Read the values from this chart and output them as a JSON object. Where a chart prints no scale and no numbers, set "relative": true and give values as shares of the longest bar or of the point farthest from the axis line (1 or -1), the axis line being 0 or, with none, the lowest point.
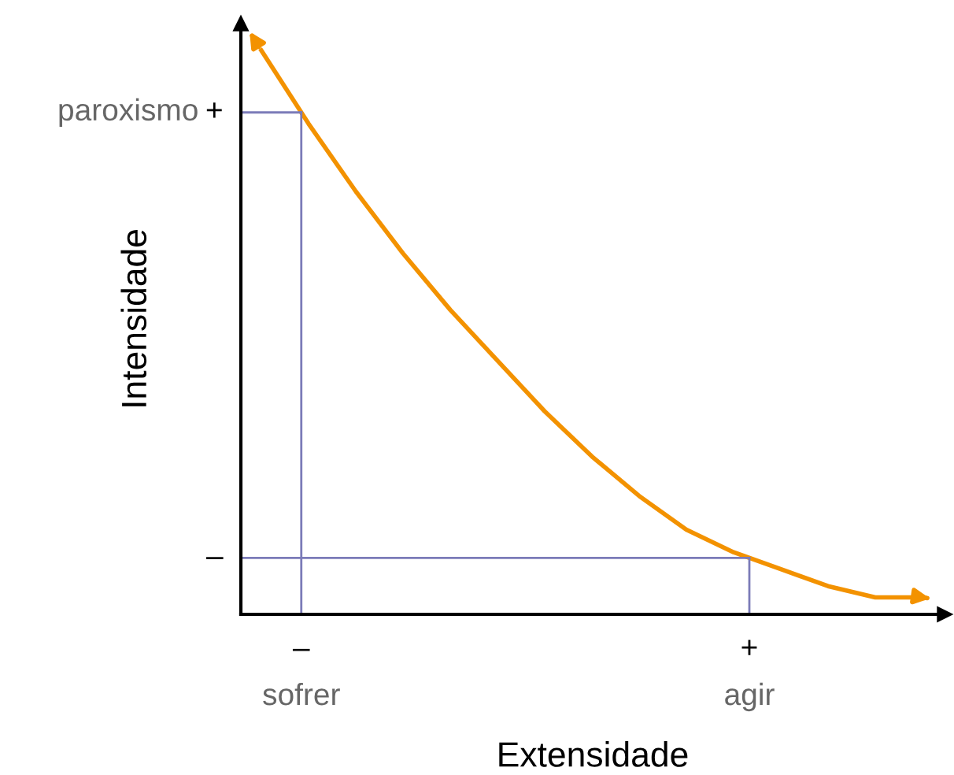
{
  "chart_data": {
    "type": "line",
    "relative": true,
    "xlabel": "Extensidade",
    "ylabel": "Intensidade",
    "categories": [
      null,
      null,
      null,
      null,
      null,
      null,
      null,
      null,
      null,
      null,
      null,
      null,
      null,
      null,
      null
    ],
    "series": [
      {
        "color": "#f39200",
        "values": [
          1,
          0.87,
          0.75,
          0.64,
          0.54,
          0.45,
          0.36,
          0.28,
          0.21,
          0.15,
          0.11,
          0.08,
          0.05,
          0.03,
          0.03
        ]
      }
    ],
    "ref_lines": [
      {
        "axis": "y",
        "value": 0.89,
        "label": "+",
        "color": "#7b7bb8"
      },
      {
        "axis": "y",
        "value": 0.1,
        "label": "–",
        "color": "#7b7bb8"
      }
    ],
    "annotations": [
      "paroxismo",
      "–",
      "sofrer",
      "+",
      "agir"
    ],
    "legend": false
  }
}
